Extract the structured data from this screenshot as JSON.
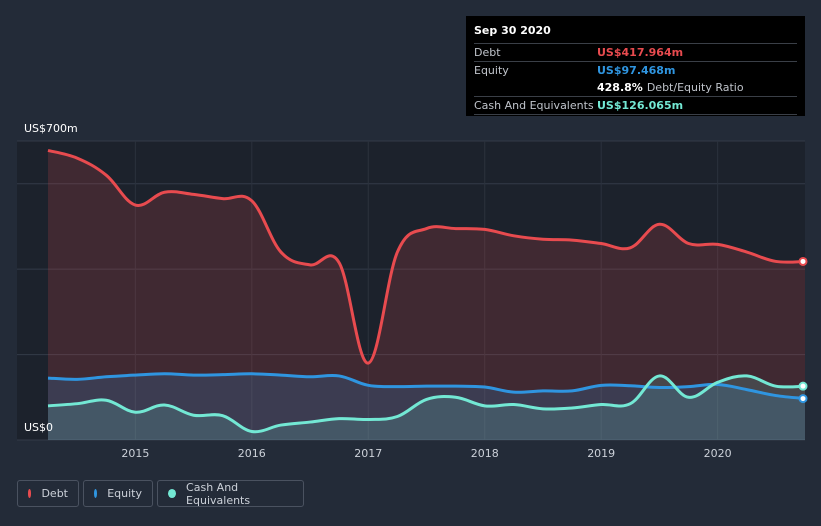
{
  "tooltip": {
    "date": "Sep 30 2020",
    "rows": [
      {
        "label": "Debt",
        "value": "US$417.964m",
        "color": "#e84b4f"
      },
      {
        "label": "Equity",
        "value": "US$97.468m",
        "color": "#2f95e0"
      },
      {
        "label": "Cash And Equivalents",
        "value": "US$126.065m",
        "color": "#73e8d4"
      }
    ],
    "ratio_pct": "428.8%",
    "ratio_label": "Debt/Equity Ratio"
  },
  "legend": [
    {
      "label": "Debt",
      "color": "#e84b4f"
    },
    {
      "label": "Equity",
      "color": "#2f95e0"
    },
    {
      "label": "Cash And Equivalents",
      "color": "#73e8d4"
    }
  ],
  "chart_data": {
    "type": "area",
    "title": "",
    "xlabel": "",
    "ylabel": "",
    "y_top_label": "US$700m",
    "y_bottom_label": "US$0",
    "ylim": [
      0,
      700
    ],
    "xlim": [
      2014.25,
      2020.75
    ],
    "x_ticks": [
      "2015",
      "2016",
      "2017",
      "2018",
      "2019",
      "2020"
    ],
    "x_tick_values": [
      2015,
      2016,
      2017,
      2018,
      2019,
      2020
    ],
    "grid": true,
    "legend_position": "bottom-left",
    "series": [
      {
        "name": "Debt",
        "color": "#e84b4f",
        "x": [
          2014.25,
          2014.5,
          2014.75,
          2015.0,
          2015.25,
          2015.5,
          2015.75,
          2016.0,
          2016.25,
          2016.5,
          2016.75,
          2017.0,
          2017.25,
          2017.5,
          2017.75,
          2018.0,
          2018.25,
          2018.5,
          2018.75,
          2019.0,
          2019.25,
          2019.5,
          2019.75,
          2020.0,
          2020.25,
          2020.5,
          2020.75
        ],
        "values": [
          678,
          660,
          620,
          550,
          580,
          575,
          565,
          560,
          440,
          410,
          415,
          180,
          440,
          495,
          495,
          493,
          478,
          470,
          468,
          460,
          450,
          505,
          460,
          458,
          440,
          418,
          418
        ]
      },
      {
        "name": "Equity",
        "color": "#2f95e0",
        "x": [
          2014.25,
          2014.5,
          2014.75,
          2015.0,
          2015.25,
          2015.5,
          2015.75,
          2016.0,
          2016.25,
          2016.5,
          2016.75,
          2017.0,
          2017.25,
          2017.5,
          2017.75,
          2018.0,
          2018.25,
          2018.5,
          2018.75,
          2019.0,
          2019.25,
          2019.5,
          2019.75,
          2020.0,
          2020.25,
          2020.5,
          2020.75
        ],
        "values": [
          145,
          142,
          148,
          152,
          155,
          152,
          153,
          155,
          152,
          148,
          150,
          128,
          125,
          126,
          126,
          124,
          112,
          115,
          115,
          128,
          127,
          123,
          125,
          130,
          118,
          104,
          97
        ]
      },
      {
        "name": "Cash And Equivalents",
        "color": "#73e8d4",
        "x": [
          2014.25,
          2014.5,
          2014.75,
          2015.0,
          2015.25,
          2015.5,
          2015.75,
          2016.0,
          2016.25,
          2016.5,
          2016.75,
          2017.0,
          2017.25,
          2017.5,
          2017.75,
          2018.0,
          2018.25,
          2018.5,
          2018.75,
          2019.0,
          2019.25,
          2019.5,
          2019.75,
          2020.0,
          2020.25,
          2020.5,
          2020.75
        ],
        "values": [
          80,
          85,
          93,
          65,
          82,
          58,
          57,
          20,
          35,
          42,
          50,
          48,
          55,
          95,
          100,
          80,
          83,
          73,
          75,
          83,
          85,
          150,
          100,
          135,
          150,
          126,
          126
        ]
      }
    ]
  }
}
